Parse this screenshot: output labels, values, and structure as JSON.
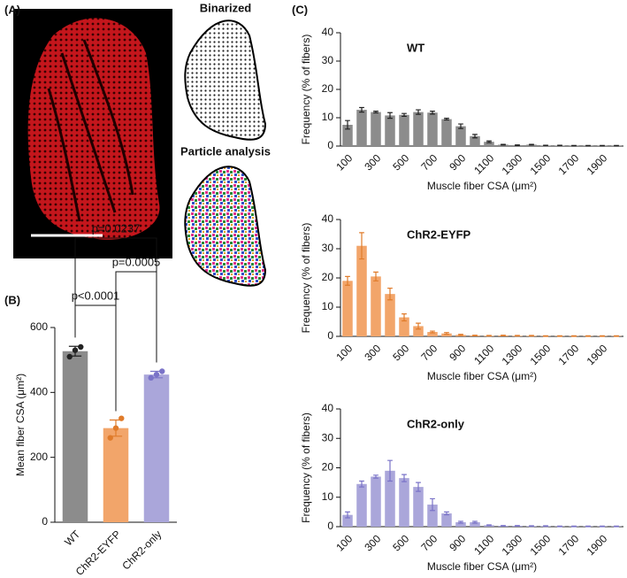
{
  "panel_labels": [
    "(A)",
    "(B)",
    "(C)"
  ],
  "image_captions": [
    "Binarized",
    "Particle analysis"
  ],
  "chart_data": [
    {
      "type": "bar",
      "ylabel": "Mean fiber CSA (μm²)",
      "categories": [
        "WT",
        "ChR2-EYFP",
        "ChR2-only"
      ],
      "values": [
        527,
        290,
        455
      ],
      "errors": [
        15,
        25,
        10
      ],
      "points": [
        [
          510,
          530,
          540
        ],
        [
          260,
          290,
          320
        ],
        [
          445,
          455,
          465
        ]
      ],
      "colors": [
        "#8c8c8c",
        "#f2a56a",
        "#aaa6da"
      ],
      "edge_colors": [
        "#222222",
        "#e07b2a",
        "#7a73c8"
      ],
      "ylim": [
        0,
        600
      ],
      "yticks": [
        0,
        200,
        400,
        600
      ],
      "annotations": [
        {
          "groups": [
            "WT",
            "ChR2-EYFP"
          ],
          "label": "p<0.0001"
        },
        {
          "groups": [
            "ChR2-EYFP",
            "ChR2-only"
          ],
          "label": "p=0.0005"
        },
        {
          "groups": [
            "WT",
            "ChR2-only"
          ],
          "label": "p=0.0237"
        }
      ]
    },
    {
      "type": "bar",
      "title": "WT",
      "xlabel": "Muscle fiber CSA (μm²)",
      "ylabel": "Frequency (% of fibers)",
      "categories": [
        "100",
        null,
        "300",
        null,
        "500",
        null,
        "700",
        null,
        "900",
        null,
        "1100",
        null,
        "1300",
        null,
        "1500",
        null,
        "1700",
        null,
        "1900",
        null
      ],
      "values": [
        7.5,
        12.8,
        12,
        10.8,
        11,
        12,
        11.8,
        9.5,
        7,
        3.5,
        1.5,
        0.5,
        0.3,
        0.5,
        0.2,
        0.2,
        0.1,
        0.1,
        0.1,
        0.1
      ],
      "errors": [
        1.5,
        0.8,
        0.3,
        1,
        0.5,
        0.8,
        0.5,
        0.3,
        0.8,
        0.6,
        0.3,
        0.1,
        0.1,
        0.1,
        0.1,
        0.1,
        0.1,
        0.1,
        0.1,
        0.1
      ],
      "color": "#8c8c8c",
      "edge_color": "#222222",
      "ylim": [
        0,
        40
      ],
      "yticks": [
        0,
        10,
        20,
        30,
        40
      ]
    },
    {
      "type": "bar",
      "title": "ChR2-EYFP",
      "xlabel": "Muscle fiber CSA (μm²)",
      "ylabel": "Frequency (% of fibers)",
      "categories": [
        "100",
        null,
        "300",
        null,
        "500",
        null,
        "700",
        null,
        "900",
        null,
        "1100",
        null,
        "1300",
        null,
        "1500",
        null,
        "1700",
        null,
        "1900",
        null
      ],
      "values": [
        19,
        31,
        20.5,
        14.5,
        6.5,
        3.5,
        1.5,
        1,
        0.5,
        0.3,
        0.2,
        0.3,
        0.2,
        0.2,
        0.1,
        0.1,
        0.1,
        0.1,
        0.1,
        0.1
      ],
      "errors": [
        1.5,
        4.5,
        1.5,
        2,
        1.2,
        1,
        0.3,
        0.3,
        0.2,
        0.1,
        0.1,
        0.1,
        0.1,
        0.1,
        0.1,
        0.1,
        0.1,
        0.1,
        0.1,
        0.1
      ],
      "color": "#f2a56a",
      "edge_color": "#e07b2a",
      "ylim": [
        0,
        40
      ],
      "yticks": [
        0,
        10,
        20,
        30,
        40
      ]
    },
    {
      "type": "bar",
      "title": "ChR2-only",
      "xlabel": "Muscle fiber CSA (μm²)",
      "ylabel": "Frequency (% of fibers)",
      "categories": [
        "100",
        null,
        "300",
        null,
        "500",
        null,
        "700",
        null,
        "900",
        null,
        "1100",
        null,
        "1300",
        null,
        "1500",
        null,
        "1700",
        null,
        "1900",
        null
      ],
      "values": [
        4,
        14.5,
        17,
        19,
        16.5,
        13.5,
        7.5,
        4.5,
        1.5,
        1.5,
        0.5,
        0.3,
        0.3,
        0.2,
        0.2,
        0.1,
        0.1,
        0.1,
        0.1,
        0.1
      ],
      "errors": [
        1,
        1,
        0.5,
        3.5,
        1.2,
        1.5,
        2,
        0.5,
        0.3,
        0.3,
        0.1,
        0.1,
        0.1,
        0.1,
        0.1,
        0.1,
        0.1,
        0.1,
        0.1,
        0.1
      ],
      "color": "#aaa6da",
      "edge_color": "#7a73c8",
      "ylim": [
        0,
        40
      ],
      "yticks": [
        0,
        10,
        20,
        30,
        40
      ]
    }
  ]
}
